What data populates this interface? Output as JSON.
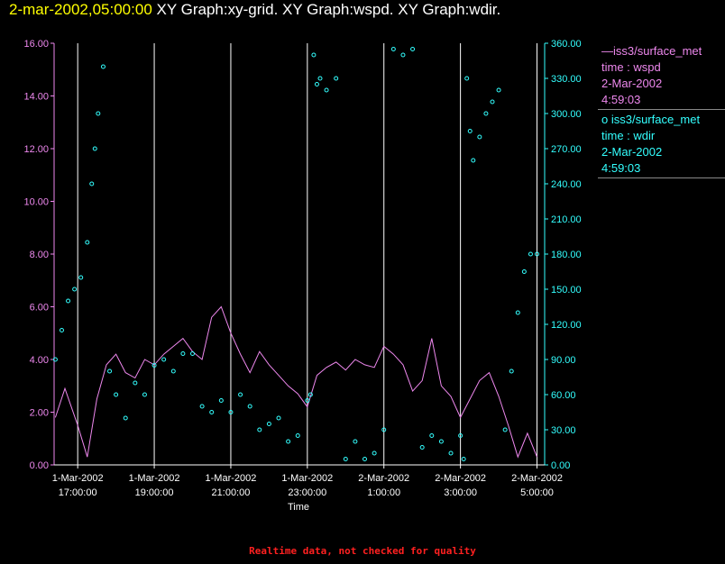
{
  "header": {
    "timestamp": "2-mar-2002,05:00:00",
    "graphs_text": "XY Graph:xy-grid.  XY Graph:wspd.  XY Graph:wdir."
  },
  "legend": {
    "wspd": {
      "line1": "iss3/surface_met",
      "line2": "time : wspd",
      "line3": "2-Mar-2002",
      "line4": "4:59:03"
    },
    "wdir": {
      "line1": "iss3/surface_met",
      "line2": "time : wdir",
      "line3": "2-Mar-2002",
      "line4": "4:59:03"
    }
  },
  "footer": {
    "note": "Realtime data, not checked for quality"
  },
  "colors": {
    "wspd": "#ee88ee",
    "wdir": "#33ffff",
    "timestamp": "#ffff00",
    "grid": "#ffffff",
    "note": "#ff2020"
  },
  "chart_data": {
    "type": "line",
    "title": "",
    "xlabel": "Time",
    "grid": "vertical lines only",
    "legend_position": "right",
    "x_range": [
      "1-Mar-2002 16:23",
      "2-Mar-2002 05:12"
    ],
    "x_ticks": [
      {
        "date": "1-Mar-2002",
        "time": "17:00:00"
      },
      {
        "date": "1-Mar-2002",
        "time": "19:00:00"
      },
      {
        "date": "1-Mar-2002",
        "time": "21:00:00"
      },
      {
        "date": "1-Mar-2002",
        "time": "23:00:00"
      },
      {
        "date": "2-Mar-2002",
        "time": "1:00:00"
      },
      {
        "date": "2-Mar-2002",
        "time": "3:00:00"
      },
      {
        "date": "2-Mar-2002",
        "time": "5:00:00"
      }
    ],
    "y_left": {
      "ylim": [
        0,
        16
      ],
      "ticks": [
        "0.00",
        "2.00",
        "4.00",
        "6.00",
        "8.00",
        "10.00",
        "12.00",
        "14.00",
        "16.00"
      ]
    },
    "y_right": {
      "ylim": [
        0,
        360
      ],
      "ticks": [
        "0.00",
        "30.00",
        "60.00",
        "90.00",
        "120.00",
        "150.00",
        "180.00",
        "210.00",
        "240.00",
        "270.00",
        "300.00",
        "330.00",
        "360.00"
      ]
    },
    "series": [
      {
        "name": "iss3/surface_met time : wspd",
        "style": "line",
        "axis": "left",
        "x": [
          "16:25",
          "16:40",
          "17:00",
          "17:15",
          "17:30",
          "17:45",
          "18:00",
          "18:15",
          "18:30",
          "18:45",
          "19:00",
          "19:15",
          "19:30",
          "19:45",
          "20:00",
          "20:15",
          "20:30",
          "20:45",
          "21:00",
          "21:15",
          "21:30",
          "21:45",
          "22:00",
          "22:15",
          "22:30",
          "22:45",
          "23:00",
          "23:15",
          "23:30",
          "23:45",
          "00:00",
          "00:15",
          "00:30",
          "00:45",
          "01:00",
          "01:15",
          "01:30",
          "01:45",
          "02:00",
          "02:15",
          "02:30",
          "02:45",
          "03:00",
          "03:15",
          "03:30",
          "03:45",
          "04:00",
          "04:15",
          "04:30",
          "04:45",
          "05:00"
        ],
        "values": [
          1.8,
          2.9,
          1.5,
          0.3,
          2.5,
          3.8,
          4.2,
          3.5,
          3.3,
          4.0,
          3.8,
          4.2,
          4.5,
          4.8,
          4.3,
          4.0,
          5.6,
          6.0,
          5.0,
          4.2,
          3.5,
          4.3,
          3.8,
          3.4,
          3.0,
          2.7,
          2.2,
          3.4,
          3.7,
          3.9,
          3.6,
          4.0,
          3.8,
          3.7,
          4.5,
          4.2,
          3.8,
          2.8,
          3.2,
          4.8,
          3.0,
          2.6,
          1.8,
          2.5,
          3.2,
          3.5,
          2.6,
          1.5,
          0.3,
          1.2,
          0.3
        ]
      },
      {
        "name": "iss3/surface_met time : wdir",
        "style": "scatter",
        "axis": "right",
        "x": [
          "16:25",
          "16:35",
          "16:45",
          "16:55",
          "17:05",
          "17:15",
          "17:22",
          "17:27",
          "17:32",
          "17:40",
          "17:50",
          "18:00",
          "18:15",
          "18:30",
          "18:45",
          "19:00",
          "19:15",
          "19:30",
          "19:45",
          "20:00",
          "20:15",
          "20:30",
          "20:45",
          "21:00",
          "21:15",
          "21:30",
          "21:45",
          "22:00",
          "22:15",
          "22:30",
          "22:45",
          "23:00",
          "23:05",
          "23:10",
          "23:15",
          "23:20",
          "23:30",
          "23:45",
          "00:00",
          "00:15",
          "00:30",
          "00:45",
          "01:00",
          "01:15",
          "01:30",
          "01:45",
          "02:00",
          "02:15",
          "02:30",
          "02:45",
          "03:00",
          "03:05",
          "03:10",
          "03:15",
          "03:20",
          "03:30",
          "03:40",
          "03:50",
          "04:00",
          "04:10",
          "04:20",
          "04:30",
          "04:40",
          "04:50",
          "05:00"
        ],
        "values": [
          90,
          115,
          140,
          150,
          160,
          190,
          240,
          270,
          300,
          340,
          80,
          60,
          40,
          70,
          60,
          85,
          90,
          80,
          95,
          95,
          50,
          45,
          55,
          45,
          60,
          50,
          30,
          35,
          40,
          20,
          25,
          55,
          60,
          350,
          325,
          330,
          320,
          330,
          5,
          20,
          5,
          10,
          30,
          355,
          350,
          355,
          15,
          25,
          20,
          10,
          25,
          5,
          330,
          285,
          260,
          280,
          300,
          310,
          320,
          30,
          80,
          130,
          165,
          180,
          180
        ]
      }
    ]
  }
}
